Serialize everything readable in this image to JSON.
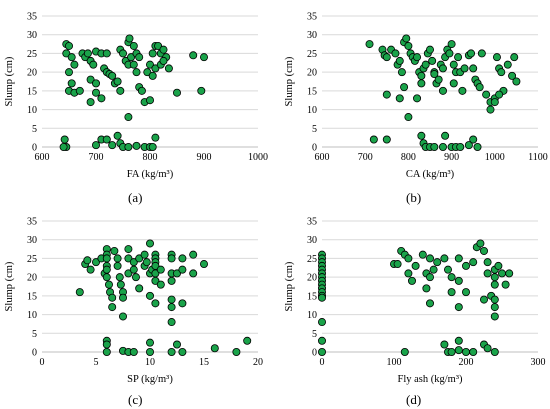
{
  "chart_data": [
    {
      "type": "scatter",
      "caption": "(a)",
      "xlabel": "FA (kg/m³)",
      "ylabel": "Slump (cm)",
      "xlim": [
        600,
        1000
      ],
      "ylim": [
        0,
        35
      ],
      "xticks": [
        600,
        700,
        800,
        900,
        1000
      ],
      "yticks": [
        0,
        5,
        10,
        15,
        20,
        25,
        30,
        35
      ],
      "marker_fill": "#1aa34a",
      "grid": "horizontal",
      "points": [
        [
          645,
          27.5
        ],
        [
          650,
          27
        ],
        [
          645,
          25
        ],
        [
          655,
          24
        ],
        [
          660,
          22
        ],
        [
          650,
          20
        ],
        [
          655,
          17
        ],
        [
          650,
          15
        ],
        [
          660,
          14.5
        ],
        [
          670,
          15
        ],
        [
          675,
          25
        ],
        [
          680,
          24
        ],
        [
          685,
          25
        ],
        [
          690,
          23
        ],
        [
          695,
          22
        ],
        [
          690,
          18
        ],
        [
          700,
          17
        ],
        [
          700,
          14.5
        ],
        [
          690,
          12
        ],
        [
          710,
          13
        ],
        [
          700,
          25.5
        ],
        [
          710,
          25
        ],
        [
          715,
          21
        ],
        [
          720,
          20
        ],
        [
          720,
          25
        ],
        [
          725,
          19.5
        ],
        [
          730,
          19
        ],
        [
          735,
          17
        ],
        [
          740,
          17.5
        ],
        [
          745,
          15
        ],
        [
          745,
          26
        ],
        [
          750,
          25
        ],
        [
          755,
          23
        ],
        [
          760,
          22
        ],
        [
          765,
          24
        ],
        [
          760,
          28
        ],
        [
          762,
          29
        ],
        [
          770,
          27
        ],
        [
          775,
          25
        ],
        [
          780,
          24
        ],
        [
          770,
          22
        ],
        [
          775,
          20
        ],
        [
          780,
          16
        ],
        [
          785,
          15
        ],
        [
          790,
          12
        ],
        [
          800,
          12.5
        ],
        [
          795,
          20
        ],
        [
          800,
          22
        ],
        [
          805,
          19
        ],
        [
          810,
          21
        ],
        [
          805,
          25
        ],
        [
          810,
          27
        ],
        [
          815,
          27
        ],
        [
          820,
          25
        ],
        [
          825,
          26
        ],
        [
          830,
          24
        ],
        [
          820,
          22
        ],
        [
          825,
          23
        ],
        [
          835,
          21
        ],
        [
          850,
          14.5
        ],
        [
          880,
          24.5
        ],
        [
          900,
          24
        ],
        [
          895,
          15
        ],
        [
          760,
          8
        ],
        [
          810,
          2.5
        ],
        [
          642,
          2
        ],
        [
          645,
          0
        ],
        [
          640,
          0
        ],
        [
          700,
          0.5
        ],
        [
          710,
          2
        ],
        [
          720,
          2
        ],
        [
          730,
          0.5
        ],
        [
          740,
          3
        ],
        [
          745,
          1
        ],
        [
          750,
          0
        ],
        [
          760,
          0
        ],
        [
          775,
          0.3
        ],
        [
          790,
          0
        ],
        [
          800,
          0
        ],
        [
          805,
          0
        ]
      ]
    },
    {
      "type": "scatter",
      "caption": "(b)",
      "xlabel": "CA (kg/m³)",
      "ylabel": "Slump (cm)",
      "xlim": [
        600,
        1100
      ],
      "ylim": [
        0,
        35
      ],
      "xticks": [
        600,
        700,
        800,
        900,
        1000,
        1100
      ],
      "yticks": [
        0,
        5,
        10,
        15,
        20,
        25,
        30,
        35
      ],
      "marker_fill": "#1aa34a",
      "grid": "horizontal",
      "points": [
        [
          710,
          27.5
        ],
        [
          740,
          26
        ],
        [
          745,
          24.5
        ],
        [
          750,
          24
        ],
        [
          760,
          26
        ],
        [
          770,
          25
        ],
        [
          775,
          22
        ],
        [
          780,
          23
        ],
        [
          785,
          20
        ],
        [
          790,
          28
        ],
        [
          795,
          29
        ],
        [
          800,
          27
        ],
        [
          805,
          25
        ],
        [
          810,
          24
        ],
        [
          815,
          23
        ],
        [
          820,
          24
        ],
        [
          825,
          20
        ],
        [
          830,
          19
        ],
        [
          835,
          21
        ],
        [
          840,
          22
        ],
        [
          845,
          25
        ],
        [
          850,
          26
        ],
        [
          855,
          23
        ],
        [
          860,
          20
        ],
        [
          865,
          17
        ],
        [
          870,
          18
        ],
        [
          875,
          22
        ],
        [
          880,
          21
        ],
        [
          885,
          24
        ],
        [
          890,
          26
        ],
        [
          895,
          25
        ],
        [
          900,
          27.5
        ],
        [
          905,
          22
        ],
        [
          910,
          20
        ],
        [
          915,
          24
        ],
        [
          920,
          20
        ],
        [
          925,
          15
        ],
        [
          930,
          21
        ],
        [
          940,
          24.5
        ],
        [
          945,
          25
        ],
        [
          950,
          21
        ],
        [
          955,
          18
        ],
        [
          960,
          17
        ],
        [
          965,
          16
        ],
        [
          970,
          25
        ],
        [
          980,
          14
        ],
        [
          990,
          12
        ],
        [
          1000,
          13
        ],
        [
          1005,
          24
        ],
        [
          1010,
          21
        ],
        [
          1015,
          20
        ],
        [
          1020,
          15
        ],
        [
          1030,
          22
        ],
        [
          1040,
          19
        ],
        [
          1045,
          24
        ],
        [
          1050,
          17.5
        ],
        [
          990,
          10
        ],
        [
          1000,
          12
        ],
        [
          1010,
          14
        ],
        [
          750,
          14
        ],
        [
          780,
          13
        ],
        [
          790,
          16
        ],
        [
          800,
          8
        ],
        [
          820,
          13
        ],
        [
          830,
          17
        ],
        [
          860,
          19.5
        ],
        [
          880,
          15
        ],
        [
          905,
          17
        ],
        [
          720,
          2
        ],
        [
          750,
          2
        ],
        [
          830,
          3
        ],
        [
          835,
          1
        ],
        [
          840,
          0
        ],
        [
          850,
          0
        ],
        [
          860,
          0
        ],
        [
          880,
          0
        ],
        [
          885,
          3
        ],
        [
          900,
          0
        ],
        [
          910,
          0
        ],
        [
          920,
          0
        ],
        [
          940,
          0.5
        ],
        [
          950,
          2
        ],
        [
          960,
          0
        ]
      ]
    },
    {
      "type": "scatter",
      "caption": "(c)",
      "xlabel": "SP (kg/m³)",
      "ylabel": "Slump (cm)",
      "xlim": [
        0,
        20
      ],
      "ylim": [
        0,
        35
      ],
      "xticks": [
        0,
        5,
        10,
        15,
        20
      ],
      "yticks": [
        0,
        5,
        10,
        15,
        20,
        25,
        30,
        35
      ],
      "marker_fill": "#1aa34a",
      "grid": "horizontal",
      "points": [
        [
          3.5,
          16
        ],
        [
          4,
          23.5
        ],
        [
          4.2,
          24.5
        ],
        [
          4.5,
          22
        ],
        [
          5,
          24
        ],
        [
          5.5,
          25
        ],
        [
          5.8,
          21
        ],
        [
          6,
          27.5
        ],
        [
          6,
          26
        ],
        [
          6,
          25
        ],
        [
          6,
          23
        ],
        [
          6,
          22
        ],
        [
          6,
          20
        ],
        [
          6.2,
          18
        ],
        [
          6.3,
          16
        ],
        [
          6.5,
          14.5
        ],
        [
          6.5,
          12
        ],
        [
          6.7,
          27
        ],
        [
          7,
          25
        ],
        [
          7,
          23
        ],
        [
          7.2,
          20
        ],
        [
          7.3,
          18
        ],
        [
          7.5,
          16
        ],
        [
          7.5,
          14.5
        ],
        [
          7.5,
          9.5
        ],
        [
          8,
          27.5
        ],
        [
          8,
          25
        ],
        [
          8,
          21
        ],
        [
          8.5,
          24
        ],
        [
          8.5,
          22
        ],
        [
          8.7,
          20
        ],
        [
          9,
          17
        ],
        [
          9,
          25
        ],
        [
          9.5,
          23
        ],
        [
          9.5,
          26
        ],
        [
          9.7,
          24
        ],
        [
          10,
          29
        ],
        [
          10,
          21
        ],
        [
          10,
          15
        ],
        [
          10.2,
          22
        ],
        [
          10.5,
          26
        ],
        [
          10.5,
          25
        ],
        [
          10.5,
          24
        ],
        [
          10.5,
          23
        ],
        [
          10.5,
          21
        ],
        [
          10.5,
          19
        ],
        [
          10.5,
          13
        ],
        [
          11,
          22
        ],
        [
          11,
          18
        ],
        [
          12,
          26
        ],
        [
          12,
          25
        ],
        [
          12,
          21
        ],
        [
          12,
          19
        ],
        [
          12,
          14
        ],
        [
          12,
          12
        ],
        [
          12,
          8
        ],
        [
          12.5,
          21
        ],
        [
          13,
          25
        ],
        [
          13,
          22
        ],
        [
          13,
          13
        ],
        [
          14,
          26
        ],
        [
          14,
          21
        ],
        [
          15,
          23.5
        ],
        [
          16,
          1
        ],
        [
          18,
          0
        ],
        [
          19,
          3
        ],
        [
          6,
          3
        ],
        [
          6,
          2
        ],
        [
          6,
          0
        ],
        [
          7.5,
          0.3
        ],
        [
          8,
          0
        ],
        [
          8.5,
          0
        ],
        [
          10,
          2.5
        ],
        [
          10,
          0
        ],
        [
          12,
          0
        ],
        [
          12.5,
          2
        ],
        [
          13,
          0
        ]
      ]
    },
    {
      "type": "scatter",
      "caption": "(d)",
      "xlabel": "Fly ash (kg/m³)",
      "ylabel": "Slump (cm)",
      "xlim": [
        0,
        300
      ],
      "ylim": [
        0,
        35
      ],
      "xticks": [
        0,
        100,
        200,
        300
      ],
      "yticks": [
        0,
        5,
        10,
        15,
        20,
        25,
        30,
        35
      ],
      "marker_fill": "#1aa34a",
      "grid": "horizontal",
      "points": [
        [
          0,
          26
        ],
        [
          0,
          25
        ],
        [
          0,
          24
        ],
        [
          0,
          23
        ],
        [
          0,
          22
        ],
        [
          0,
          21
        ],
        [
          0,
          20
        ],
        [
          0,
          19
        ],
        [
          0,
          18
        ],
        [
          0,
          17
        ],
        [
          0,
          16
        ],
        [
          0,
          15
        ],
        [
          0,
          14.5
        ],
        [
          0,
          8
        ],
        [
          0,
          3
        ],
        [
          0,
          0
        ],
        [
          100,
          23.5
        ],
        [
          105,
          23.5
        ],
        [
          110,
          27
        ],
        [
          115,
          26
        ],
        [
          120,
          25
        ],
        [
          120,
          21
        ],
        [
          125,
          19
        ],
        [
          130,
          23
        ],
        [
          140,
          26
        ],
        [
          145,
          21
        ],
        [
          145,
          17
        ],
        [
          150,
          20
        ],
        [
          150,
          25
        ],
        [
          150,
          13
        ],
        [
          155,
          22
        ],
        [
          160,
          24
        ],
        [
          170,
          25
        ],
        [
          175,
          22
        ],
        [
          180,
          20
        ],
        [
          180,
          16
        ],
        [
          190,
          25
        ],
        [
          190,
          19
        ],
        [
          190,
          12
        ],
        [
          200,
          23
        ],
        [
          200,
          16
        ],
        [
          210,
          24
        ],
        [
          215,
          28
        ],
        [
          220,
          29
        ],
        [
          225,
          27
        ],
        [
          230,
          24
        ],
        [
          230,
          21
        ],
        [
          235,
          15
        ],
        [
          240,
          22
        ],
        [
          240,
          20
        ],
        [
          240,
          18
        ],
        [
          240,
          14
        ],
        [
          240,
          12
        ],
        [
          240,
          9.5
        ],
        [
          245,
          23
        ],
        [
          250,
          21
        ],
        [
          255,
          18
        ],
        [
          260,
          21
        ],
        [
          225,
          14
        ],
        [
          115,
          0
        ],
        [
          170,
          2
        ],
        [
          175,
          0
        ],
        [
          180,
          0
        ],
        [
          190,
          3
        ],
        [
          190,
          0.5
        ],
        [
          200,
          0
        ],
        [
          210,
          0
        ],
        [
          225,
          2
        ],
        [
          230,
          1
        ],
        [
          240,
          0
        ]
      ]
    }
  ]
}
